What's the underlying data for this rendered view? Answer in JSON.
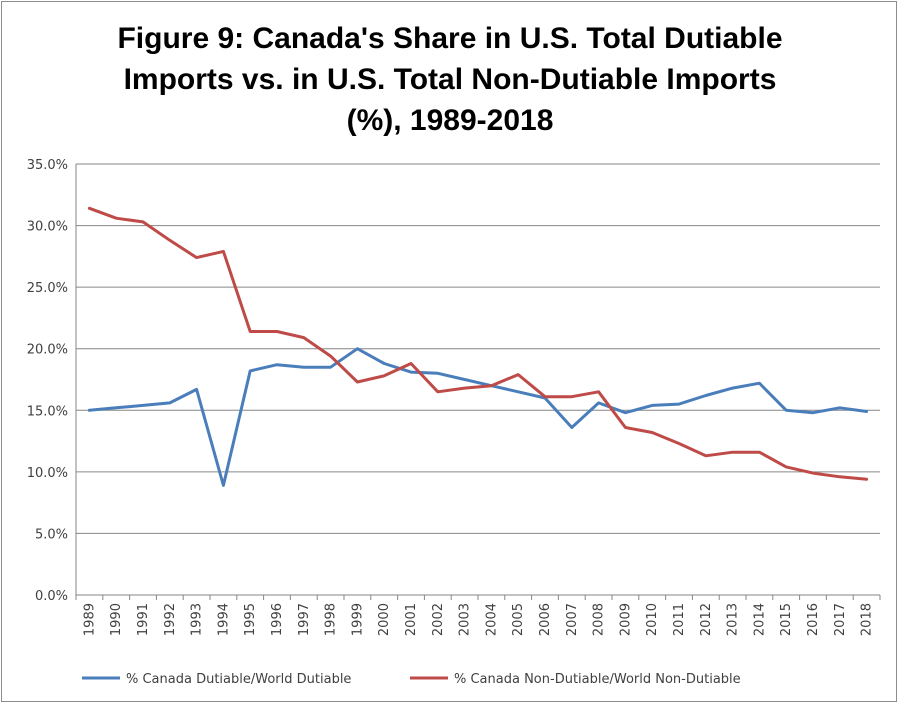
{
  "chart_data": {
    "type": "line",
    "title_lines": [
      "Figure 9: Canada's Share in U.S. Total Dutiable",
      "Imports vs. in U.S. Total Non-Dutiable Imports",
      "(%), 1989-2018"
    ],
    "categories": [
      "1989",
      "1990",
      "1991",
      "1992",
      "1993",
      "1994",
      "1995",
      "1996",
      "1997",
      "1998",
      "1999",
      "2000",
      "2001",
      "2002",
      "2003",
      "2004",
      "2005",
      "2006",
      "2007",
      "2008",
      "2009",
      "2010",
      "2011",
      "2012",
      "2013",
      "2014",
      "2015",
      "2016",
      "2017",
      "2018"
    ],
    "y_ticks": [
      "0.0%",
      "5.0%",
      "10.0%",
      "15.0%",
      "20.0%",
      "25.0%",
      "30.0%",
      "35.0%"
    ],
    "ylim": [
      0,
      35
    ],
    "series": [
      {
        "name": "% Canada Dutiable/World Dutiable",
        "color": "#4a7ebb",
        "values": [
          15.0,
          15.2,
          15.4,
          15.6,
          16.7,
          8.9,
          18.2,
          18.7,
          18.5,
          18.5,
          20.0,
          18.8,
          18.1,
          18.0,
          17.5,
          17.0,
          16.5,
          16.0,
          13.6,
          15.6,
          14.8,
          15.4,
          15.5,
          16.2,
          16.8,
          17.2,
          15.0,
          14.8,
          15.2,
          14.9
        ]
      },
      {
        "name": "% Canada Non-Dutiable/World Non-Dutiable",
        "color": "#be4b48",
        "values": [
          31.4,
          30.6,
          30.3,
          28.8,
          27.4,
          27.9,
          21.4,
          21.4,
          20.9,
          19.4,
          17.3,
          17.8,
          18.8,
          16.5,
          16.8,
          17.0,
          17.9,
          16.1,
          16.1,
          16.5,
          13.6,
          13.2,
          12.3,
          11.3,
          11.6,
          11.6,
          10.4,
          9.9,
          9.6,
          9.4
        ]
      }
    ]
  }
}
